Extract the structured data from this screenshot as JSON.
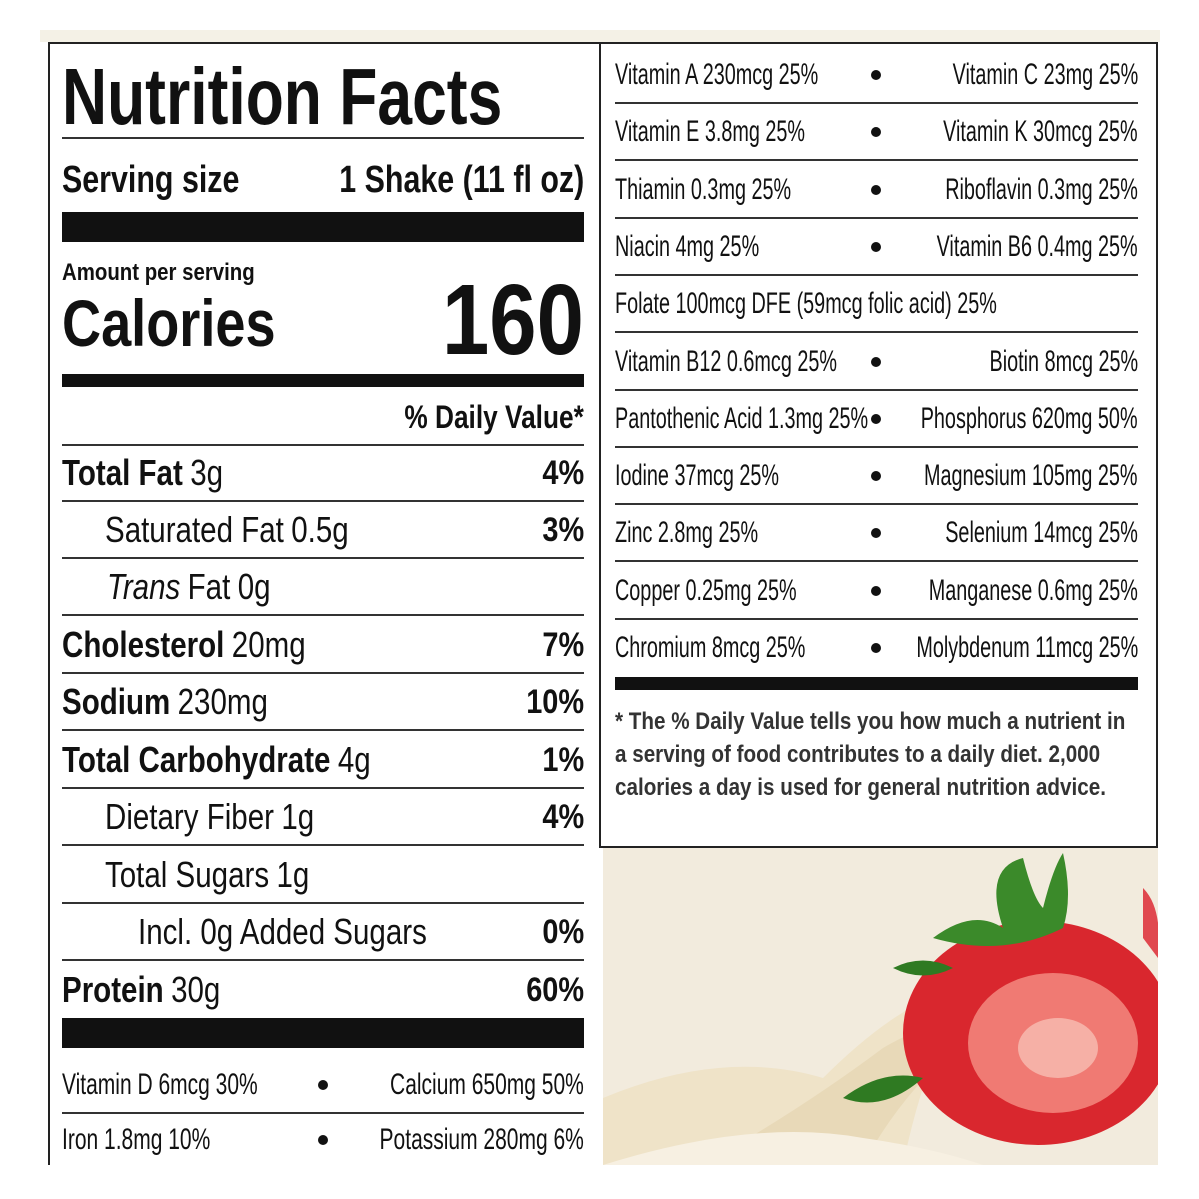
{
  "label": {
    "title": "Nutrition Facts",
    "serving_size_label": "Serving size",
    "serving_size": "1 Shake (11 fl oz)",
    "amount_per_serving": "Amount per serving",
    "calories_label": "Calories",
    "calories": "160",
    "daily_value_header": "% Daily Value*",
    "nutrients": [
      {
        "name": "Total Fat",
        "amount": "3g",
        "dv": "4%"
      },
      {
        "name": "Saturated Fat",
        "amount": "0.5g",
        "dv": "3%"
      },
      {
        "name_italic": "Trans",
        "name": "Fat",
        "amount": "0g"
      },
      {
        "name": "Cholesterol",
        "amount": "20mg",
        "dv": "7%"
      },
      {
        "name": "Sodium",
        "amount": "230mg",
        "dv": "10%"
      },
      {
        "name": "Total Carbohydrate",
        "amount": "4g",
        "dv": "1%"
      },
      {
        "name": "Dietary Fiber",
        "amount": "1g",
        "dv": "4%"
      },
      {
        "name": "Total Sugars",
        "amount": "1g"
      },
      {
        "name": "Incl. 0g Added Sugars",
        "dv": "0%"
      },
      {
        "name": "Protein",
        "amount": "30g",
        "dv": "60%"
      }
    ],
    "micronutrients_left": [
      [
        "Vitamin D 6mcg 30%",
        "Calcium 650mg 50%"
      ],
      [
        "Iron 1.8mg 10%",
        "Potassium 280mg 6%"
      ]
    ],
    "micronutrients_right": [
      [
        "Vitamin A 230mcg 25%",
        "Vitamin C 23mg 25%"
      ],
      [
        "Vitamin E 3.8mg 25%",
        "Vitamin K 30mcg 25%"
      ],
      [
        "Thiamin 0.3mg 25%",
        "Riboflavin 0.3mg 25%"
      ],
      [
        "Niacin 4mg 25%",
        "Vitamin B6 0.4mg 25%"
      ],
      [
        "Folate 100mcg DFE (59mcg folic acid) 25%"
      ],
      [
        "Vitamin B12 0.6mcg 25%",
        "Biotin 8mcg 25%"
      ],
      [
        "Pantothenic Acid 1.3mg 25%",
        "Phosphorus 620mg 50%"
      ],
      [
        "Iodine 37mcg 25%",
        "Magnesium 105mg 25%"
      ],
      [
        "Zinc 2.8mg 25%",
        "Selenium 14mcg 25%"
      ],
      [
        "Copper 0.25mg 25%",
        "Manganese 0.6mg 25%"
      ],
      [
        "Chromium 8mcg 25%",
        "Molybdenum 11mcg 25%"
      ]
    ],
    "footnote": "* The % Daily Value tells you how much a nutrient in a serving of food contributes to a daily diet. 2,000 calories a day is used for general nutrition advice."
  }
}
